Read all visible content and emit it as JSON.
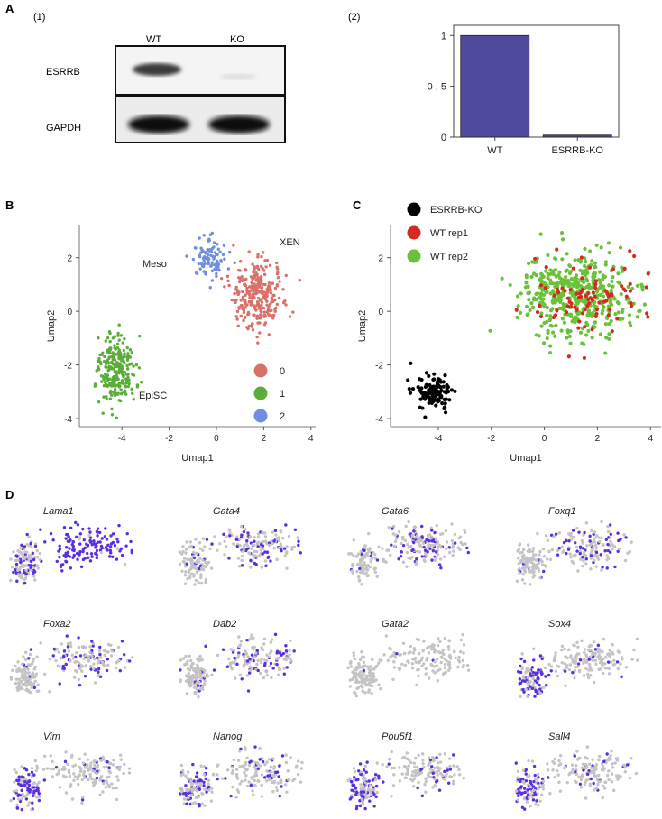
{
  "panel_letters": {
    "a": "A",
    "b": "B",
    "c": "C",
    "d": "D"
  },
  "panel_a": {
    "sub1": "(1)",
    "sub2": "(2)",
    "blot": {
      "lanes": [
        "WT",
        "KO"
      ],
      "rows": [
        "ESRRB",
        "GAPDH"
      ]
    }
  },
  "chart_data": [
    {
      "type": "bar",
      "title": "",
      "categories": [
        "WT",
        "ESRRB-KO"
      ],
      "values": [
        1.0,
        0.02
      ],
      "ylim": [
        0,
        1.1
      ],
      "yticks": [
        {
          "v": 0,
          "label": "0"
        },
        {
          "v": 0.5,
          "label": "0 . 5"
        },
        {
          "v": 1,
          "label": "1"
        }
      ],
      "bar_color": "#4f4a9e",
      "xlabel": "",
      "ylabel": ""
    },
    {
      "type": "scatter",
      "title": "",
      "xlabel": "Umap1",
      "ylabel": "Umap2",
      "xlim": [
        -5.8,
        4.2
      ],
      "ylim": [
        -4.3,
        3.2
      ],
      "xticks": [
        -4,
        -2,
        0,
        2,
        4
      ],
      "yticks": [
        -4,
        -2,
        0,
        2
      ],
      "clusters": [
        {
          "name": "0",
          "label": "XEN",
          "color": "#d9706a",
          "cx": 1.7,
          "cy": 0.6,
          "sx": 1.0,
          "sy": 1.1,
          "n": 300
        },
        {
          "name": "1",
          "label": "EpiSC",
          "color": "#5bad3b",
          "cx": -4.2,
          "cy": -2.2,
          "sx": 0.7,
          "sy": 1.2,
          "n": 260
        },
        {
          "name": "2",
          "label": "Meso",
          "color": "#6f8ee0",
          "cx": -0.3,
          "cy": 1.9,
          "sx": 0.7,
          "sy": 0.7,
          "n": 90
        }
      ],
      "legend": [
        {
          "name": "0",
          "color": "#d9706a"
        },
        {
          "name": "1",
          "color": "#5bad3b"
        },
        {
          "name": "2",
          "color": "#6f8ee0"
        }
      ]
    },
    {
      "type": "scatter",
      "title": "",
      "xlabel": "Umap1",
      "ylabel": "Umap2",
      "xlim": [
        -5.8,
        4.4
      ],
      "ylim": [
        -4.3,
        3.2
      ],
      "xticks": [
        -4,
        -2,
        0,
        2,
        4
      ],
      "yticks": [
        -4,
        -2,
        0,
        2
      ],
      "series": [
        {
          "name": "ESRRB-KO",
          "color": "#000000",
          "cx": -4.2,
          "cy": -3.0,
          "sx": 0.6,
          "sy": 0.5,
          "n": 110
        },
        {
          "name": "WT rep1",
          "color": "#d42a1f",
          "cx": 1.5,
          "cy": 0.4,
          "sx": 1.6,
          "sy": 1.2,
          "n": 90
        },
        {
          "name": "WT rep2",
          "color": "#6ac23a",
          "cx": 1.2,
          "cy": 0.6,
          "sx": 1.8,
          "sy": 1.3,
          "n": 450
        }
      ]
    }
  ],
  "panel_d": {
    "genes": [
      "Lama1",
      "Gata4",
      "Gata6",
      "Foxq1",
      "Foxa2",
      "Dab2",
      "Gata2",
      "Sox4",
      "Vim",
      "Nanog",
      "Pou5f1",
      "Sall4"
    ],
    "expr_color": "#5a2fe0",
    "base_color": "#c4c4c4"
  }
}
